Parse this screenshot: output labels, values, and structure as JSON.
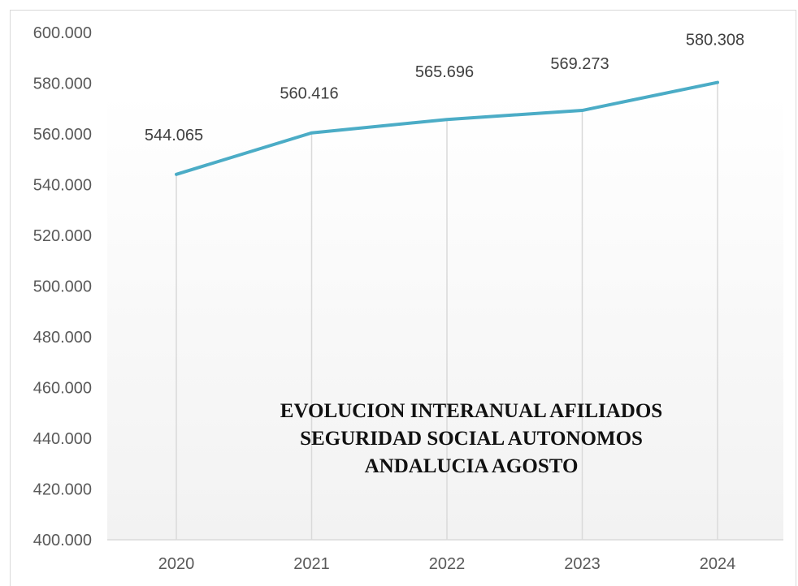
{
  "chart_data": {
    "type": "line",
    "title_lines": [
      "EVOLUCION INTERANUAL AFILIADOS",
      "SEGURIDAD SOCIAL AUTONOMOS",
      "ANDALUCIA AGOSTO"
    ],
    "categories": [
      "2020",
      "2021",
      "2022",
      "2023",
      "2024"
    ],
    "series": [
      {
        "values": [
          544065,
          560416,
          565696,
          569273,
          580308
        ],
        "data_labels": [
          "544.065",
          "560.416",
          "565.696",
          "569.273",
          "580.308"
        ],
        "color": "#4bacc6"
      }
    ],
    "ylim": [
      400000,
      600000
    ],
    "y_ticks": [
      400000,
      420000,
      440000,
      460000,
      480000,
      500000,
      520000,
      540000,
      560000,
      580000,
      600000
    ],
    "y_tick_labels": [
      "400.000",
      "420.000",
      "440.000",
      "460.000",
      "480.000",
      "500.000",
      "520.000",
      "540.000",
      "560.000",
      "580.000",
      "600.000"
    ],
    "xlabel": "",
    "ylabel": "",
    "grid": "vertical drop lines",
    "legend": "none"
  }
}
